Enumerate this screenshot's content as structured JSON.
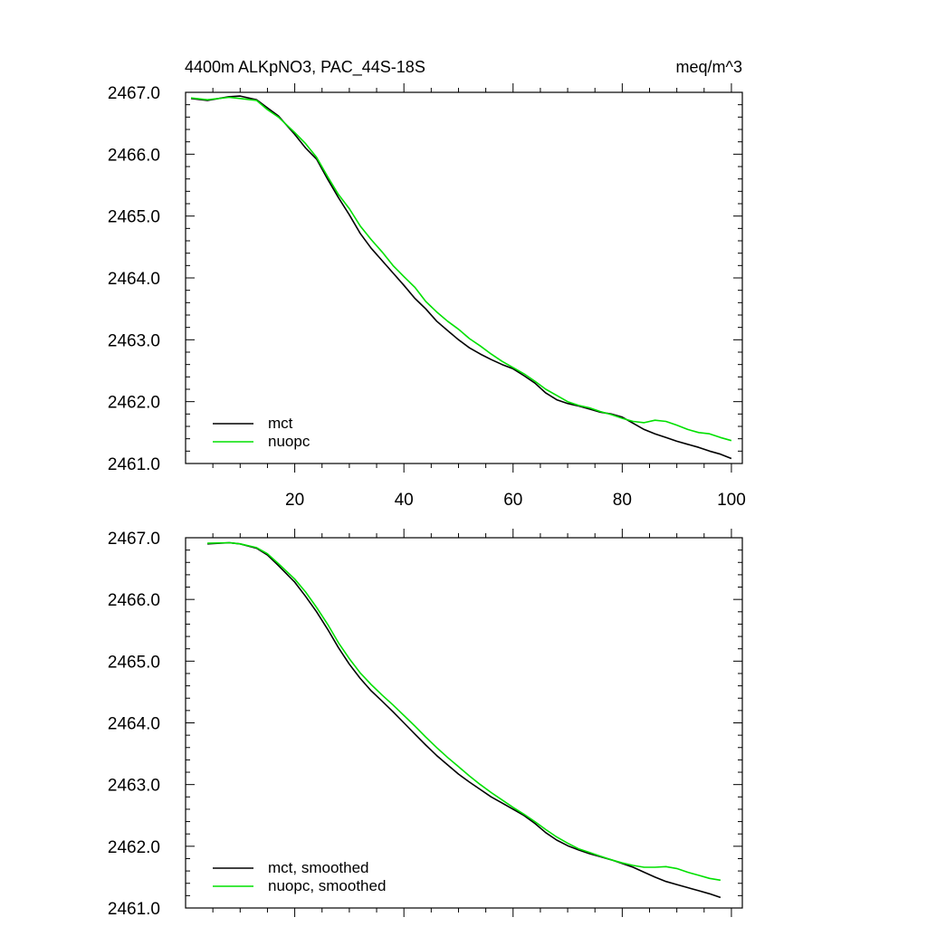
{
  "chart_data": [
    {
      "type": "line",
      "title_left": "4400m ALKpNO3, PAC_44S-18S",
      "title_right": "meq/m^3",
      "xlabel": "",
      "ylabel": "",
      "xlim": [
        0,
        102
      ],
      "ylim": [
        2461.0,
        2467.0
      ],
      "xticks": [
        20,
        40,
        60,
        80,
        100
      ],
      "xtick_labels": [
        "20",
        "40",
        "60",
        "80",
        "100"
      ],
      "yticks": [
        2461.0,
        2462.0,
        2463.0,
        2464.0,
        2465.0,
        2466.0,
        2467.0
      ],
      "ytick_labels": [
        "2461.0",
        "2462.0",
        "2463.0",
        "2464.0",
        "2465.0",
        "2466.0",
        "2467.0"
      ],
      "legend_position": "bottom-left",
      "series": [
        {
          "name": "mct",
          "color": "#000000",
          "x": [
            1,
            4,
            8,
            10,
            13,
            15,
            17,
            20,
            22,
            24,
            26,
            28,
            30,
            32,
            34,
            36,
            38,
            40,
            42,
            44,
            46,
            48,
            50,
            52,
            54,
            56,
            58,
            60,
            62,
            64,
            66,
            68,
            70,
            72,
            74,
            76,
            78,
            80,
            82,
            84,
            86,
            88,
            90,
            92,
            94,
            96,
            98,
            100
          ],
          "y": [
            2466.9,
            2466.87,
            2466.93,
            2466.94,
            2466.88,
            2466.75,
            2466.62,
            2466.32,
            2466.1,
            2465.92,
            2465.6,
            2465.3,
            2465.02,
            2464.72,
            2464.48,
            2464.28,
            2464.08,
            2463.88,
            2463.67,
            2463.5,
            2463.3,
            2463.15,
            2463.0,
            2462.87,
            2462.77,
            2462.68,
            2462.6,
            2462.53,
            2462.42,
            2462.3,
            2462.14,
            2462.03,
            2461.97,
            2461.93,
            2461.88,
            2461.83,
            2461.8,
            2461.75,
            2461.65,
            2461.55,
            2461.48,
            2461.42,
            2461.36,
            2461.31,
            2461.26,
            2461.2,
            2461.15,
            2461.08
          ]
        },
        {
          "name": "nuopc",
          "color": "#00e000",
          "x": [
            1,
            4,
            8,
            10,
            13,
            15,
            17,
            20,
            22,
            24,
            26,
            28,
            30,
            32,
            34,
            36,
            38,
            40,
            42,
            44,
            46,
            48,
            50,
            52,
            54,
            56,
            58,
            60,
            62,
            64,
            66,
            68,
            70,
            72,
            74,
            76,
            78,
            80,
            82,
            84,
            86,
            88,
            90,
            92,
            94,
            96,
            98,
            100
          ],
          "y": [
            2466.91,
            2466.88,
            2466.92,
            2466.9,
            2466.87,
            2466.72,
            2466.6,
            2466.35,
            2466.17,
            2465.95,
            2465.64,
            2465.35,
            2465.12,
            2464.84,
            2464.62,
            2464.42,
            2464.2,
            2464.02,
            2463.85,
            2463.62,
            2463.45,
            2463.3,
            2463.17,
            2463.02,
            2462.9,
            2462.77,
            2462.65,
            2462.55,
            2462.45,
            2462.33,
            2462.2,
            2462.1,
            2462.0,
            2461.94,
            2461.9,
            2461.84,
            2461.79,
            2461.73,
            2461.68,
            2461.66,
            2461.7,
            2461.68,
            2461.62,
            2461.55,
            2461.5,
            2461.48,
            2461.42,
            2461.37
          ]
        }
      ]
    },
    {
      "type": "line",
      "title_left": "",
      "title_right": "",
      "xlabel": "",
      "ylabel": "",
      "xlim": [
        0,
        102
      ],
      "ylim": [
        2461.0,
        2467.0
      ],
      "xticks": [
        20,
        40,
        60,
        80,
        100
      ],
      "xtick_labels": [],
      "yticks": [
        2461.0,
        2462.0,
        2463.0,
        2464.0,
        2465.0,
        2466.0,
        2467.0
      ],
      "ytick_labels": [
        "2461.0",
        "2462.0",
        "2463.0",
        "2464.0",
        "2465.0",
        "2466.0",
        "2467.0"
      ],
      "legend_position": "bottom-left",
      "series": [
        {
          "name": "mct, smoothed",
          "color": "#000000",
          "x": [
            4,
            8,
            10,
            13,
            15,
            17,
            20,
            22,
            24,
            26,
            28,
            30,
            32,
            34,
            36,
            38,
            40,
            42,
            44,
            46,
            48,
            50,
            52,
            54,
            56,
            58,
            60,
            62,
            64,
            66,
            68,
            70,
            72,
            74,
            76,
            78,
            80,
            82,
            84,
            86,
            88,
            90,
            92,
            94,
            96,
            98
          ],
          "y": [
            2466.9,
            2466.92,
            2466.9,
            2466.83,
            2466.72,
            2466.55,
            2466.28,
            2466.05,
            2465.8,
            2465.52,
            2465.22,
            2464.95,
            2464.72,
            2464.52,
            2464.35,
            2464.18,
            2464.0,
            2463.82,
            2463.64,
            2463.47,
            2463.32,
            2463.17,
            2463.04,
            2462.92,
            2462.8,
            2462.7,
            2462.6,
            2462.5,
            2462.37,
            2462.22,
            2462.1,
            2462.01,
            2461.94,
            2461.88,
            2461.83,
            2461.78,
            2461.72,
            2461.66,
            2461.58,
            2461.5,
            2461.43,
            2461.38,
            2461.33,
            2461.28,
            2461.23,
            2461.17
          ]
        },
        {
          "name": "nuopc, smoothed",
          "color": "#00e000",
          "x": [
            4,
            8,
            10,
            13,
            15,
            17,
            20,
            22,
            24,
            26,
            28,
            30,
            32,
            34,
            36,
            38,
            40,
            42,
            44,
            46,
            48,
            50,
            52,
            54,
            56,
            58,
            60,
            62,
            64,
            66,
            68,
            70,
            72,
            74,
            76,
            78,
            80,
            82,
            84,
            86,
            88,
            90,
            92,
            94,
            96,
            98
          ],
          "y": [
            2466.91,
            2466.92,
            2466.9,
            2466.84,
            2466.74,
            2466.58,
            2466.33,
            2466.12,
            2465.87,
            2465.6,
            2465.3,
            2465.04,
            2464.81,
            2464.62,
            2464.45,
            2464.29,
            2464.12,
            2463.95,
            2463.77,
            2463.6,
            2463.44,
            2463.29,
            2463.14,
            2463.0,
            2462.87,
            2462.75,
            2462.63,
            2462.52,
            2462.4,
            2462.27,
            2462.15,
            2462.05,
            2461.96,
            2461.9,
            2461.84,
            2461.78,
            2461.73,
            2461.69,
            2461.66,
            2461.66,
            2461.67,
            2461.64,
            2461.58,
            2461.53,
            2461.48,
            2461.45
          ]
        }
      ]
    }
  ]
}
